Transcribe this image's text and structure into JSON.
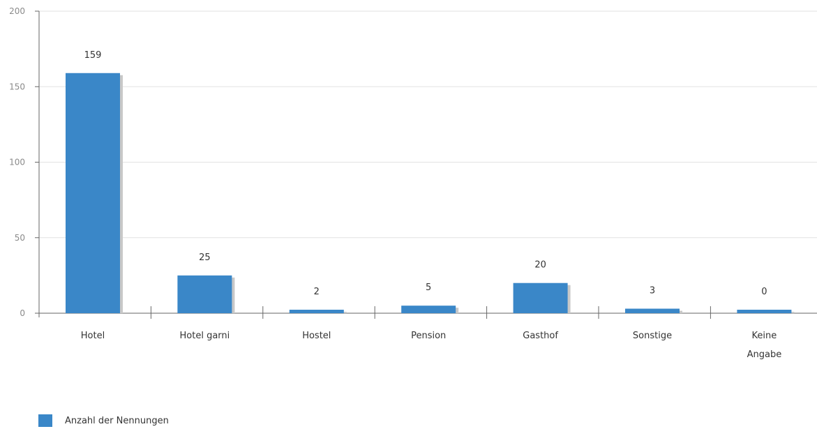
{
  "chart_data": {
    "type": "bar",
    "categories": [
      "Hotel",
      "Hotel garni",
      "Hostel",
      "Pension",
      "Gasthof",
      "Sonstige",
      "Keine Angabe"
    ],
    "series": [
      {
        "name": "Anzahl der Nennungen",
        "values": [
          159,
          25,
          2,
          5,
          20,
          3,
          0
        ]
      }
    ],
    "data_labels": [
      "159",
      "25",
      "2",
      "5",
      "20",
      "3",
      "0"
    ],
    "yticks": [
      0,
      50,
      100,
      150,
      200
    ],
    "ylim": [
      0,
      200
    ],
    "grid": true,
    "legend_position": "bottom-left",
    "bar_color": "#3a87c8",
    "shadow_color": "#c8c8c8",
    "grid_color": "#e2e2e2",
    "axis_color": "#666666"
  }
}
